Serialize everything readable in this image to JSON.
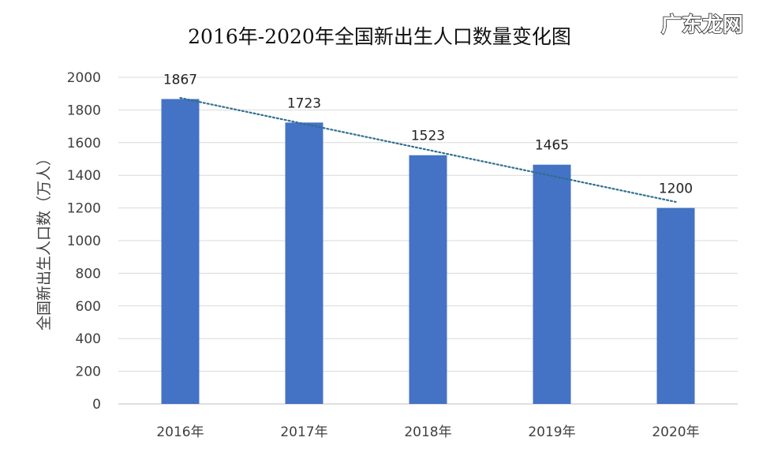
{
  "chart_data": {
    "type": "bar",
    "title": "2016年-2020年全国新出生人口数量变化图",
    "xlabel": "",
    "ylabel": "全国新出生人口数（万人）",
    "categories": [
      "2016年",
      "2017年",
      "2018年",
      "2019年",
      "2020年"
    ],
    "values": [
      1867,
      1723,
      1523,
      1465,
      1200
    ],
    "data_labels": [
      "1867",
      "1723",
      "1523",
      "1465",
      "1200"
    ],
    "ylim": [
      0,
      2000
    ],
    "yticks": [
      0,
      200,
      400,
      600,
      800,
      1000,
      1200,
      1400,
      1600,
      1800,
      2000
    ],
    "grid": true,
    "trendline": {
      "type": "linear",
      "style": "dotted",
      "color": "#2f6f8f"
    },
    "bar_color": "#4472c4",
    "legend": "none"
  },
  "watermark": "广东龙网"
}
